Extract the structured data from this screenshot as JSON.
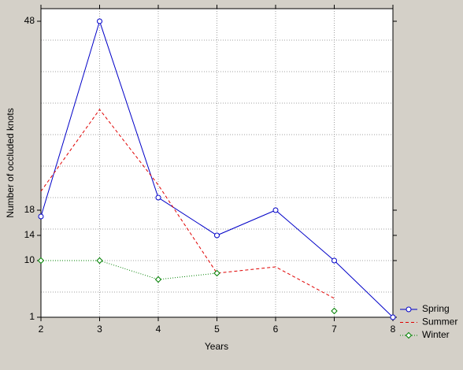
{
  "chart_data": {
    "type": "line",
    "xlabel": "Years",
    "ylabel": "Number of occluded knots",
    "x": [
      2,
      3,
      4,
      5,
      6,
      7,
      8
    ],
    "series": [
      {
        "name": "Spring",
        "color": "#0000c8",
        "marker": "circle",
        "dash": "solid",
        "values": [
          17,
          48,
          20,
          14,
          18,
          10,
          1
        ]
      },
      {
        "name": "Summer",
        "color": "#e00000",
        "marker": "none",
        "dash": "dashed",
        "values": [
          21,
          34,
          22,
          8,
          9,
          4,
          null
        ]
      },
      {
        "name": "Winter",
        "color": "#008000",
        "marker": "diamond",
        "dash": "dotted",
        "values": [
          10,
          10,
          7,
          8,
          null,
          2,
          null
        ]
      }
    ],
    "xlim": [
      2,
      8
    ],
    "xticks": [
      2,
      3,
      4,
      5,
      6,
      7,
      8
    ],
    "ylim": [
      1,
      50
    ],
    "yticks": [
      1,
      10,
      14,
      18,
      48
    ],
    "ygrid": [
      5,
      10,
      15,
      20,
      25,
      30,
      35,
      40,
      45
    ],
    "grid": true,
    "legend": "bottom-right"
  }
}
